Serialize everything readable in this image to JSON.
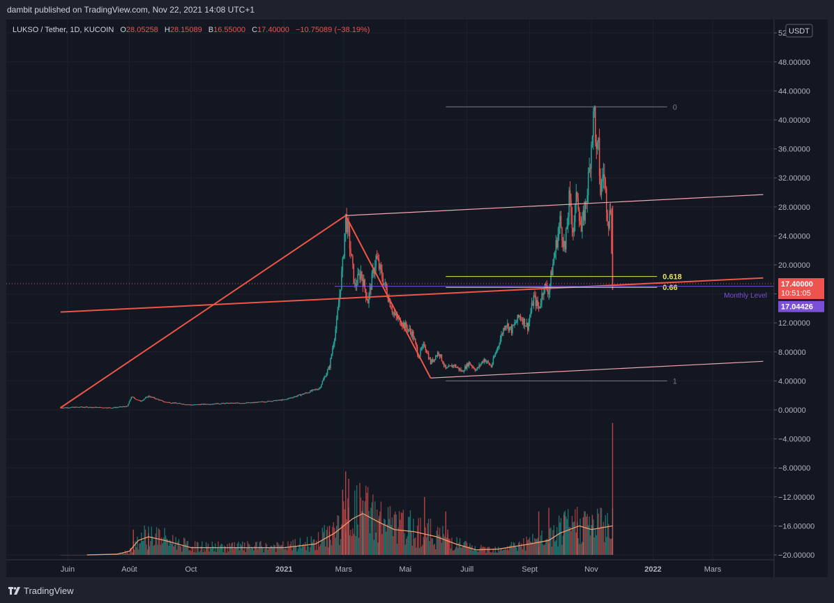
{
  "header": {
    "publish_line": "dambit published on TradingView.com, Nov 22, 2021 14:08 UTC+1"
  },
  "legend": {
    "symbol": "LUKSO / Tether, 1D, KUCOIN",
    "o_label": "O",
    "o_value": "28.05258",
    "h_label": "H",
    "h_value": "28.15089",
    "b_label": "B",
    "b_value": "16.55000",
    "c_label": "C",
    "c_value": "17.40000",
    "change": "−10.75089 (−38.19%)"
  },
  "footer": {
    "brand": "TradingView"
  },
  "colors": {
    "up": "#26a69a",
    "down": "#ef5350",
    "background": "#131722",
    "trend_line": "#f05545",
    "channel": "#f3a6b0",
    "fib": "#e6e653",
    "monthly": "#7b4fd6",
    "volume_ma": "#f0a070"
  },
  "chart_data": {
    "type": "candlestick",
    "title": "LUKSO / Tether, 1D, KUCOIN",
    "currency": "USDT",
    "ylim": [
      -20,
      52
    ],
    "y_ticks": [
      -20,
      -16,
      -12,
      -8,
      -4,
      0,
      4,
      8,
      12,
      16,
      20,
      24,
      28,
      32,
      36,
      40,
      44,
      48,
      52
    ],
    "x_labels": [
      {
        "label": "Juin",
        "date": "2020-06-01"
      },
      {
        "label": "Août",
        "date": "2020-08-01"
      },
      {
        "label": "Oct",
        "date": "2020-10-01"
      },
      {
        "label": "2021",
        "date": "2021-01-01"
      },
      {
        "label": "Mars",
        "date": "2021-03-01"
      },
      {
        "label": "Mai",
        "date": "2021-05-01"
      },
      {
        "label": "Juill",
        "date": "2021-07-01"
      },
      {
        "label": "Sept",
        "date": "2021-09-01"
      },
      {
        "label": "Nov",
        "date": "2021-11-01"
      },
      {
        "label": "2022",
        "date": "2022-01-01"
      },
      {
        "label": "Mars",
        "date": "2022-03-01"
      }
    ],
    "price_path": [
      [
        "2020-05-25",
        0.3
      ],
      [
        "2020-06-15",
        0.4
      ],
      [
        "2020-07-15",
        0.3
      ],
      [
        "2020-07-30",
        0.5
      ],
      [
        "2020-08-03",
        1.8
      ],
      [
        "2020-08-12",
        1.2
      ],
      [
        "2020-08-20",
        1.9
      ],
      [
        "2020-09-05",
        1.1
      ],
      [
        "2020-10-01",
        0.7
      ],
      [
        "2020-11-01",
        0.9
      ],
      [
        "2020-12-01",
        1.0
      ],
      [
        "2021-01-01",
        1.4
      ],
      [
        "2021-01-20",
        2.2
      ],
      [
        "2021-02-05",
        3.0
      ],
      [
        "2021-02-15",
        6.0
      ],
      [
        "2021-02-22",
        12.0
      ],
      [
        "2021-02-28",
        20.0
      ],
      [
        "2021-03-03",
        26.5
      ],
      [
        "2021-03-06",
        24.0
      ],
      [
        "2021-03-12",
        17.0
      ],
      [
        "2021-03-18",
        19.0
      ],
      [
        "2021-03-25",
        15.0
      ],
      [
        "2021-04-02",
        21.0
      ],
      [
        "2021-04-10",
        17.5
      ],
      [
        "2021-04-20",
        13.0
      ],
      [
        "2021-04-28",
        12.0
      ],
      [
        "2021-05-08",
        10.5
      ],
      [
        "2021-05-14",
        7.5
      ],
      [
        "2021-05-20",
        9.0
      ],
      [
        "2021-05-26",
        6.5
      ],
      [
        "2021-06-03",
        8.0
      ],
      [
        "2021-06-10",
        5.6
      ],
      [
        "2021-06-18",
        6.2
      ],
      [
        "2021-06-26",
        5.3
      ],
      [
        "2021-07-03",
        6.5
      ],
      [
        "2021-07-10",
        5.5
      ],
      [
        "2021-07-18",
        7.0
      ],
      [
        "2021-07-25",
        6.0
      ],
      [
        "2021-08-01",
        9.0
      ],
      [
        "2021-08-08",
        12.0
      ],
      [
        "2021-08-14",
        11.0
      ],
      [
        "2021-08-22",
        13.0
      ],
      [
        "2021-08-30",
        11.5
      ],
      [
        "2021-09-05",
        15.5
      ],
      [
        "2021-09-10",
        14.0
      ],
      [
        "2021-09-15",
        17.0
      ],
      [
        "2021-09-20",
        16.5
      ],
      [
        "2021-09-25",
        21.0
      ],
      [
        "2021-10-01",
        26.0
      ],
      [
        "2021-10-06",
        22.0
      ],
      [
        "2021-10-10",
        29.0
      ],
      [
        "2021-10-14",
        25.0
      ],
      [
        "2021-10-18",
        30.0
      ],
      [
        "2021-10-22",
        24.5
      ],
      [
        "2021-10-26",
        28.0
      ],
      [
        "2021-10-30",
        33.0
      ],
      [
        "2021-11-02",
        39.0
      ],
      [
        "2021-11-04",
        41.2
      ],
      [
        "2021-11-06",
        35.0
      ],
      [
        "2021-11-08",
        36.0
      ],
      [
        "2021-11-10",
        30.0
      ],
      [
        "2021-11-13",
        33.0
      ],
      [
        "2021-11-16",
        28.5
      ],
      [
        "2021-11-18",
        26.0
      ],
      [
        "2021-11-20",
        28.0
      ],
      [
        "2021-11-22",
        17.4
      ]
    ],
    "volume_ma": [
      [
        "2020-06-20",
        -20.0
      ],
      [
        "2020-07-20",
        -19.9
      ],
      [
        "2020-08-01",
        -19.5
      ],
      [
        "2020-08-10",
        -18.0
      ],
      [
        "2020-08-20",
        -17.5
      ],
      [
        "2020-09-05",
        -18.0
      ],
      [
        "2020-10-01",
        -19.0
      ],
      [
        "2020-12-01",
        -19.0
      ],
      [
        "2021-01-01",
        -19.0
      ],
      [
        "2021-02-01",
        -18.5
      ],
      [
        "2021-02-20",
        -17.0
      ],
      [
        "2021-03-10",
        -15.0
      ],
      [
        "2021-03-20",
        -14.3
      ],
      [
        "2021-04-05",
        -15.5
      ],
      [
        "2021-04-20",
        -16.5
      ],
      [
        "2021-05-10",
        -16.8
      ],
      [
        "2021-06-01",
        -17.5
      ],
      [
        "2021-06-20",
        -18.5
      ],
      [
        "2021-07-10",
        -19.3
      ],
      [
        "2021-08-01",
        -19.2
      ],
      [
        "2021-09-01",
        -18.5
      ],
      [
        "2021-09-20",
        -18.0
      ],
      [
        "2021-10-01",
        -17.0
      ],
      [
        "2021-10-20",
        -16.0
      ],
      [
        "2021-11-01",
        -16.5
      ],
      [
        "2021-11-22",
        -16.0
      ]
    ],
    "volume_spikes": [
      [
        "2020-08-05",
        -16.5
      ],
      [
        "2020-08-20",
        -17.0
      ],
      [
        "2021-02-15",
        -16.0
      ],
      [
        "2021-02-28",
        -11.0
      ],
      [
        "2021-03-03",
        -8.5
      ],
      [
        "2021-03-06",
        -9.5
      ],
      [
        "2021-03-20",
        -12.5
      ],
      [
        "2021-04-05",
        -15.0
      ],
      [
        "2021-05-20",
        -12.0
      ],
      [
        "2021-06-10",
        -14.0
      ],
      [
        "2021-06-12",
        -16.5
      ],
      [
        "2021-09-10",
        -14.0
      ],
      [
        "2021-09-20",
        -13.5
      ],
      [
        "2021-10-05",
        -14.5
      ],
      [
        "2021-10-18",
        -15.5
      ],
      [
        "2021-10-24",
        -14.8
      ],
      [
        "2021-11-02",
        -14.5
      ],
      [
        "2021-11-22",
        -1.8
      ]
    ],
    "drawings": {
      "trend_up": [
        [
          "2020-05-25",
          0.3
        ],
        [
          "2021-03-03",
          26.8
        ]
      ],
      "trend_down": [
        [
          "2021-03-03",
          26.8
        ],
        [
          "2021-05-26",
          4.4
        ]
      ],
      "support_line": [
        [
          "2020-05-25",
          13.5
        ],
        [
          "2022-04-20",
          18.2
        ]
      ],
      "channel_upper": [
        [
          "2021-03-03",
          26.8
        ],
        [
          "2022-04-20",
          29.7
        ]
      ],
      "channel_lower": [
        [
          "2021-05-26",
          4.4
        ],
        [
          "2022-04-20",
          6.7
        ]
      ],
      "fib_0": {
        "from": "2021-06-10",
        "to": "2022-01-15",
        "price": 41.8,
        "label": "0"
      },
      "fib_1": {
        "from": "2021-06-10",
        "to": "2022-01-15",
        "price": 4.0,
        "label": "1"
      },
      "fib_0618": {
        "from": "2021-06-10",
        "to": "2022-01-05",
        "price": 18.4,
        "label": "0.618"
      },
      "fib_066": {
        "from": "2021-06-10",
        "to": "2022-01-05",
        "price": 16.9,
        "label": "0.66"
      },
      "monthly_level": {
        "from": "2021-02-20",
        "to": "2022-04-20",
        "price": 17.04,
        "label": "Monthly Level"
      }
    },
    "last_price": {
      "value": "17.40000",
      "price": 17.4,
      "countdown": "10:51:05"
    },
    "monthly_badge": {
      "value": "17.04426",
      "price": 17.04426
    }
  }
}
